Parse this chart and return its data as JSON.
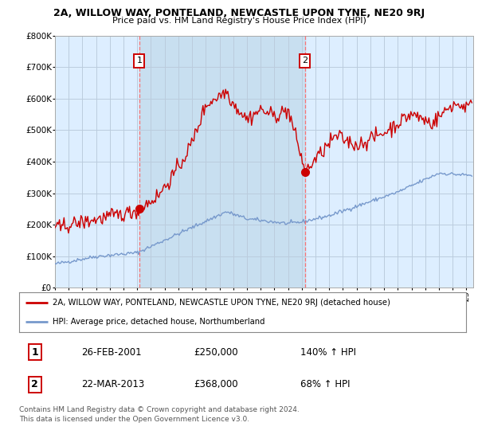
{
  "title": "2A, WILLOW WAY, PONTELAND, NEWCASTLE UPON TYNE, NE20 9RJ",
  "subtitle": "Price paid vs. HM Land Registry's House Price Index (HPI)",
  "ylim": [
    0,
    800000
  ],
  "xlim_start": 1995.0,
  "xlim_end": 2025.5,
  "transaction1_date": 2001.15,
  "transaction1_price": 250000,
  "transaction2_date": 2013.22,
  "transaction2_price": 368000,
  "legend_label_red": "2A, WILLOW WAY, PONTELAND, NEWCASTLE UPON TYNE, NE20 9RJ (detached house)",
  "legend_label_blue": "HPI: Average price, detached house, Northumberland",
  "footer1": "Contains HM Land Registry data © Crown copyright and database right 2024.",
  "footer2": "This data is licensed under the Open Government Licence v3.0.",
  "table_row1": [
    "1",
    "26-FEB-2001",
    "£250,000",
    "140% ↑ HPI"
  ],
  "table_row2": [
    "2",
    "22-MAR-2013",
    "£368,000",
    "68% ↑ HPI"
  ],
  "background_color": "#ffffff",
  "plot_bg_color": "#ddeeff",
  "shade_color": "#c8dff0",
  "grid_color": "#bbccdd",
  "red_line_color": "#cc0000",
  "blue_line_color": "#7799cc",
  "vline_color": "#ff6666",
  "box_edge_color": "#cc0000"
}
